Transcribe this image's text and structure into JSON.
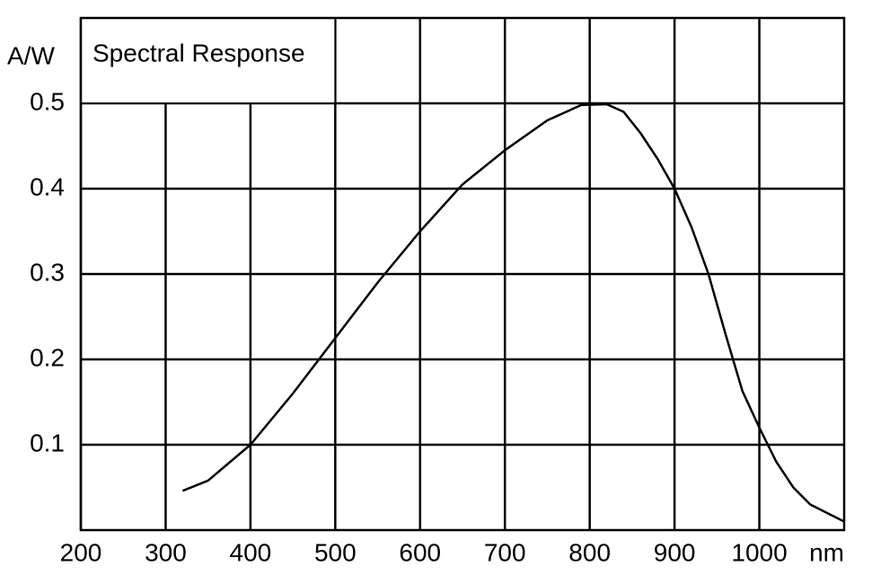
{
  "chart_data": {
    "type": "line",
    "title": "Spectral Response",
    "y_label": "A/W",
    "x_label": "nm",
    "x": [
      320,
      350,
      400,
      450,
      500,
      550,
      600,
      650,
      700,
      750,
      790,
      820,
      840,
      860,
      880,
      900,
      920,
      940,
      960,
      980,
      1000,
      1020,
      1040,
      1060,
      1080,
      1100
    ],
    "series": [
      {
        "color": "#000000",
        "values": [
          0.046,
          0.058,
          0.1,
          0.16,
          0.225,
          0.29,
          0.35,
          0.405,
          0.445,
          0.48,
          0.498,
          0.499,
          0.49,
          0.465,
          0.435,
          0.4,
          0.355,
          0.3,
          0.23,
          0.163,
          0.12,
          0.08,
          0.05,
          0.03,
          0.02,
          0.01
        ]
      }
    ],
    "xlim": [
      200,
      1100
    ],
    "ylim": [
      0,
      0.6
    ],
    "xticks": [
      200,
      300,
      400,
      500,
      600,
      700,
      800,
      900,
      1000
    ],
    "yticks": [
      0.1,
      0.2,
      0.3,
      0.4,
      0.5
    ],
    "grid": true
  }
}
